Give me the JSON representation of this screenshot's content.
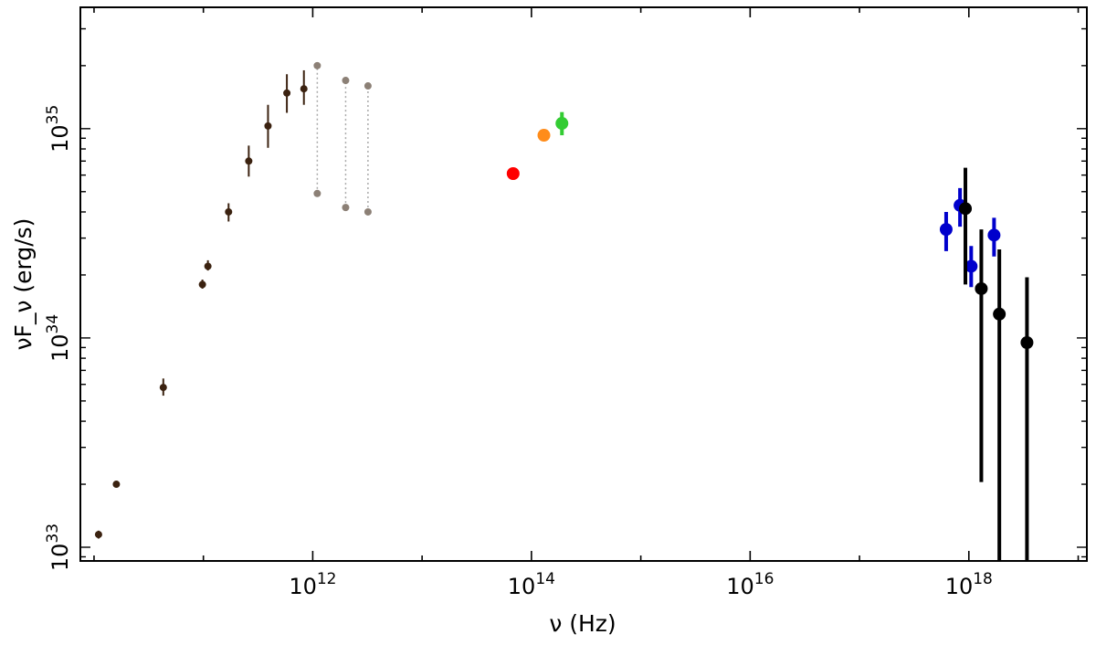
{
  "chart_data": {
    "type": "scatter",
    "title": "",
    "xlabel": "ν (Hz)",
    "ylabel": "νF_ν (erg/s)",
    "x_scale": "log",
    "y_scale": "log",
    "xlim": [
      7500000000.0,
      1.2e+19
    ],
    "ylim": [
      8.6e+32,
      3.8e+35
    ],
    "grid": false,
    "x_ticks": [
      {
        "value": 1000000000000.0,
        "base": "10",
        "exp": "12"
      },
      {
        "value": 100000000000000.0,
        "base": "10",
        "exp": "14"
      },
      {
        "value": 1e+16,
        "base": "10",
        "exp": "16"
      },
      {
        "value": 1e+18,
        "base": "10",
        "exp": "18"
      }
    ],
    "y_ticks": [
      {
        "value": 1e+33,
        "base": "10",
        "exp": "33"
      },
      {
        "value": 1e+34,
        "base": "10",
        "exp": "34"
      },
      {
        "value": 1e+35,
        "base": "10",
        "exp": "35"
      }
    ],
    "series": [
      {
        "color": "#3b2210",
        "marker_size": "small",
        "points": [
          {
            "x": 11000000000.0,
            "y": 1.15e+33,
            "ylo": 1.1e+33,
            "yhi": 1.2e+33
          },
          {
            "x": 16000000000.0,
            "y": 2e+33,
            "ylo": 1.95e+33,
            "yhi": 2.05e+33
          },
          {
            "x": 43000000000.0,
            "y": 5.8e+33,
            "ylo": 5.3e+33,
            "yhi": 6.4e+33
          },
          {
            "x": 98000000000.0,
            "y": 1.8e+34,
            "ylo": 1.72e+34,
            "yhi": 1.9e+34
          },
          {
            "x": 110000000000.0,
            "y": 2.2e+34,
            "ylo": 2.1e+34,
            "yhi": 2.35e+34
          },
          {
            "x": 170000000000.0,
            "y": 4e+34,
            "ylo": 3.6e+34,
            "yhi": 4.4e+34
          },
          {
            "x": 260000000000.0,
            "y": 7e+34,
            "ylo": 5.9e+34,
            "yhi": 8.3e+34
          },
          {
            "x": 390000000000.0,
            "y": 1.03e+35,
            "ylo": 8.1e+34,
            "yhi": 1.3e+35
          },
          {
            "x": 580000000000.0,
            "y": 1.48e+35,
            "ylo": 1.19e+35,
            "yhi": 1.82e+35
          },
          {
            "x": 830000000000.0,
            "y": 1.55e+35,
            "ylo": 1.3e+35,
            "yhi": 1.9e+35
          }
        ]
      },
      {
        "color": "#8c8076",
        "marker_size": "small",
        "dotted_range": true,
        "points": [
          {
            "x": 1100000000000.0,
            "ylo": 4.9e+34,
            "yhi": 2e+35
          },
          {
            "x": 2000000000000.0,
            "ylo": 4.2e+34,
            "yhi": 1.7e+35
          },
          {
            "x": 3200000000000.0,
            "ylo": 4e+34,
            "yhi": 1.6e+35
          }
        ]
      },
      {
        "color": "#ff0000",
        "marker_size": "large",
        "points": [
          {
            "x": 68000000000000.0,
            "y": 6.1e+34,
            "ylo": 5.7e+34,
            "yhi": 6.5e+34
          }
        ]
      },
      {
        "color": "#ff8c1a",
        "marker_size": "large",
        "points": [
          {
            "x": 130000000000000.0,
            "y": 9.3e+34,
            "ylo": 9.3e+34,
            "yhi": 9.3e+34
          }
        ]
      },
      {
        "color": "#33cc33",
        "marker_size": "large",
        "points": [
          {
            "x": 190000000000000.0,
            "y": 1.06e+35,
            "ylo": 9.3e+34,
            "yhi": 1.2e+35
          }
        ]
      },
      {
        "color": "#0000cc",
        "marker_size": "large",
        "points": [
          {
            "x": 6.2e+17,
            "y": 3.3e+34,
            "ylo": 2.6e+34,
            "yhi": 4e+34
          },
          {
            "x": 8.3e+17,
            "y": 4.3e+34,
            "ylo": 3.4e+34,
            "yhi": 5.2e+34
          },
          {
            "x": 1.05e+18,
            "y": 2.2e+34,
            "ylo": 1.75e+34,
            "yhi": 2.75e+34
          },
          {
            "x": 1.7e+18,
            "y": 3.1e+34,
            "ylo": 2.45e+34,
            "yhi": 3.75e+34
          }
        ]
      },
      {
        "color": "#000000",
        "marker_size": "large",
        "points": [
          {
            "x": 9.3e+17,
            "y": 4.15e+34,
            "ylo": 1.8e+34,
            "yhi": 6.5e+34
          },
          {
            "x": 1.3e+18,
            "y": 1.72e+34,
            "ylo": 2.05e+33,
            "yhi": 3.3e+34
          },
          {
            "x": 1.9e+18,
            "y": 1.3e+34,
            "ylo": 8.6e+32,
            "yhi": 2.65e+34
          },
          {
            "x": 3.4e+18,
            "y": 9.5e+33,
            "ylo": 8.6e+32,
            "yhi": 1.95e+34
          }
        ]
      }
    ]
  }
}
